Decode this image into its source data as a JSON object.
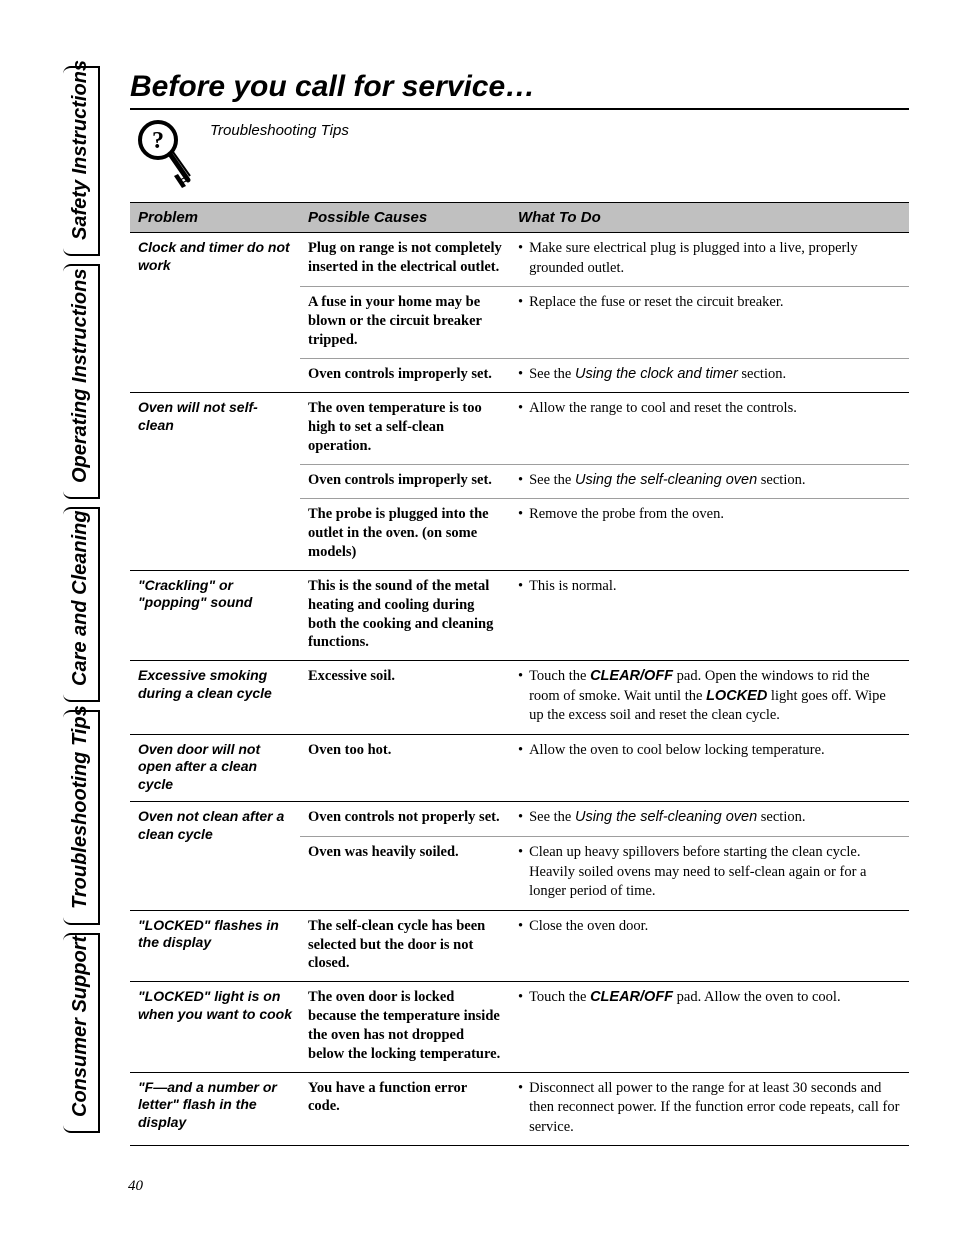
{
  "page_number": "40",
  "title": "Before you call for service…",
  "tips_label": "Troubleshooting Tips",
  "side_tabs": {
    "safety": "Safety Instructions",
    "operating": "Operating Instructions",
    "care": "Care and Cleaning",
    "troubleshooting": "Troubleshooting Tips",
    "consumer": "Consumer Support"
  },
  "headers": {
    "problem": "Problem",
    "causes": "Possible Causes",
    "todo": "What To Do"
  },
  "rows": [
    {
      "problem": "Clock and timer do not work",
      "entries": [
        {
          "cause": "Plug on range is not completely inserted in the electrical outlet.",
          "todo_text": "Make sure electrical plug is plugged into a live, properly grounded outlet."
        },
        {
          "cause": "A fuse in your home may be blown or the circuit breaker tripped.",
          "todo_text": "Replace the fuse or reset the circuit breaker."
        },
        {
          "cause": "Oven controls improperly set.",
          "todo_prefix": "See the ",
          "todo_ref": "Using the clock and timer",
          "todo_suffix": " section."
        }
      ]
    },
    {
      "problem": "Oven will not self-clean",
      "entries": [
        {
          "cause": "The oven temperature is too high to set a self-clean operation.",
          "todo_text": "Allow the range to cool and reset the controls."
        },
        {
          "cause": "Oven controls improperly set.",
          "todo_prefix": "See the ",
          "todo_ref": "Using the self-cleaning oven",
          "todo_suffix": " section."
        },
        {
          "cause": "The probe is plugged into the outlet in the oven. (on some models)",
          "todo_text": "Remove the probe from the oven."
        }
      ]
    },
    {
      "problem": "\"Crackling\" or \"popping\" sound",
      "entries": [
        {
          "cause": "This is the sound of the metal heating and cooling during both the cooking and cleaning functions.",
          "todo_text": "This is normal."
        }
      ]
    },
    {
      "problem": "Excessive smoking during a clean cycle",
      "entries": [
        {
          "cause": "Excessive soil.",
          "todo_html": "Touch the <span class=\"bold-inline\">CLEAR/OFF</span> pad. Open the windows to rid the room of smoke. Wait until the <span class=\"bold-inline\">LOCKED</span> light goes off. Wipe up the excess soil and reset the clean cycle."
        }
      ]
    },
    {
      "problem": "Oven door will not open after a clean cycle",
      "entries": [
        {
          "cause": "Oven too hot.",
          "todo_text": "Allow the oven to cool below locking temperature."
        }
      ]
    },
    {
      "problem": "Oven not clean after a clean cycle",
      "entries": [
        {
          "cause": "Oven controls not properly set.",
          "todo_prefix": "See the ",
          "todo_ref": "Using the self-cleaning oven",
          "todo_suffix": " section."
        },
        {
          "cause": "Oven was heavily soiled.",
          "todo_text": "Clean up heavy spillovers before starting the clean cycle. Heavily soiled ovens may need to self-clean again or for a longer period of time."
        }
      ]
    },
    {
      "problem": "\"LOCKED\" flashes in the display",
      "entries": [
        {
          "cause": "The self-clean cycle has been selected but the door is not closed.",
          "todo_text": "Close the oven door."
        }
      ]
    },
    {
      "problem": "\"LOCKED\" light is on when you want to cook",
      "entries": [
        {
          "cause": "The oven door is locked because the temperature inside the oven has not dropped below the locking temperature.",
          "todo_html": "Touch the <span class=\"bold-inline\">CLEAR/OFF</span> pad. Allow the oven to cool."
        }
      ]
    },
    {
      "problem": "\"F—and a number or letter\" flash in the display",
      "entries": [
        {
          "cause": "You have a function error code.",
          "todo_text": "Disconnect all power to the range for at least 30 seconds and then reconnect power. If the function error code repeats, call for service."
        }
      ]
    }
  ]
}
